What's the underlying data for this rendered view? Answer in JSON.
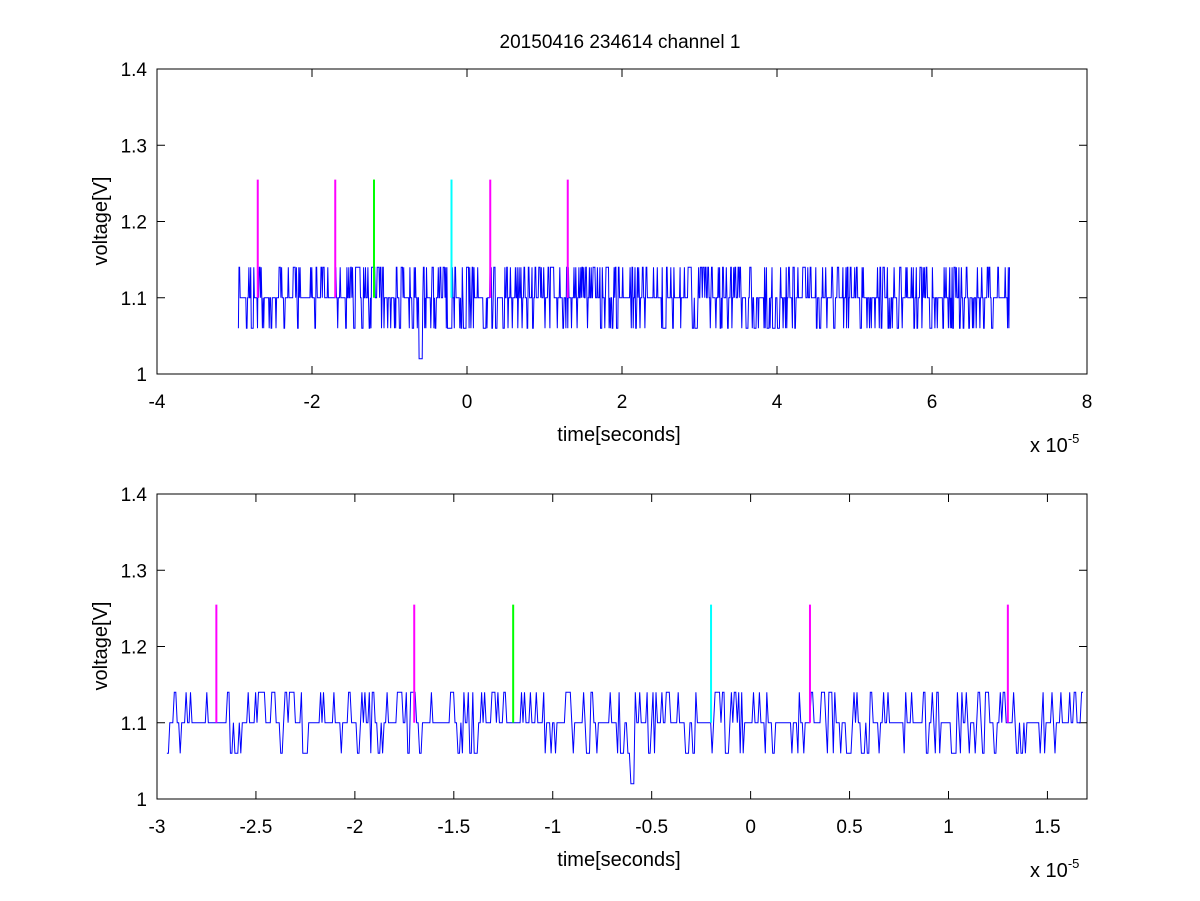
{
  "figure_title": "20150416 234614 channel 1",
  "colors": {
    "signal": "#0000ff",
    "marker_magenta": "#ff00ff",
    "marker_green": "#00ff00",
    "marker_cyan": "#00ffff",
    "axes": "#000000",
    "background": "#ffffff"
  },
  "chart_data": [
    {
      "type": "line",
      "title": "20150416 234614 channel 1",
      "xlabel": "time[seconds]",
      "ylabel": "voltage[V]",
      "x_exponent_base": "x 10",
      "x_exponent_power": "-5",
      "xlim": [
        -4,
        8
      ],
      "ylim": [
        1,
        1.4
      ],
      "xticks": [
        -4,
        -2,
        0,
        2,
        4,
        6,
        8
      ],
      "xtick_labels": [
        "-4",
        "-2",
        "0",
        "2",
        "4",
        "6",
        "8"
      ],
      "yticks": [
        1,
        1.1,
        1.2,
        1.3,
        1.4
      ],
      "ytick_labels": [
        "1",
        "1.1",
        "1.2",
        "1.3",
        "1.4"
      ],
      "grid": false,
      "signal": {
        "x_range": [
          -2.95,
          7.0
        ],
        "baseline": 1.1,
        "levels": [
          1.02,
          1.06,
          1.1,
          1.14
        ],
        "dip_at": -0.6,
        "dip_value": 1.02
      },
      "markers": [
        {
          "x": -2.7,
          "y_bottom": 1.1,
          "y_top": 1.255,
          "color": "magenta"
        },
        {
          "x": -1.7,
          "y_bottom": 1.1,
          "y_top": 1.255,
          "color": "magenta"
        },
        {
          "x": -1.2,
          "y_bottom": 1.1,
          "y_top": 1.255,
          "color": "green"
        },
        {
          "x": -0.2,
          "y_bottom": 1.1,
          "y_top": 1.255,
          "color": "cyan"
        },
        {
          "x": 0.3,
          "y_bottom": 1.1,
          "y_top": 1.255,
          "color": "magenta"
        },
        {
          "x": 1.3,
          "y_bottom": 1.1,
          "y_top": 1.255,
          "color": "magenta"
        }
      ]
    },
    {
      "type": "line",
      "title": "",
      "xlabel": "time[seconds]",
      "ylabel": "voltage[V]",
      "x_exponent_base": "x 10",
      "x_exponent_power": "-5",
      "xlim": [
        -3.0,
        1.7
      ],
      "ylim": [
        1,
        1.4
      ],
      "xticks": [
        -3,
        -2.5,
        -2,
        -1.5,
        -1,
        -0.5,
        0,
        0.5,
        1,
        1.5
      ],
      "xtick_labels": [
        "-3",
        "-2.5",
        "-2",
        "-1.5",
        "-1",
        "-0.5",
        "0",
        "0.5",
        "1",
        "1.5"
      ],
      "yticks": [
        1,
        1.1,
        1.2,
        1.3,
        1.4
      ],
      "ytick_labels": [
        "1",
        "1.1",
        "1.2",
        "1.3",
        "1.4"
      ],
      "grid": false,
      "signal": {
        "x_range": [
          -2.95,
          1.68
        ],
        "baseline": 1.1,
        "levels": [
          1.02,
          1.06,
          1.1,
          1.14
        ],
        "dip_at": -0.6,
        "dip_value": 1.02
      },
      "markers": [
        {
          "x": -2.7,
          "y_bottom": 1.1,
          "y_top": 1.255,
          "color": "magenta"
        },
        {
          "x": -1.7,
          "y_bottom": 1.1,
          "y_top": 1.255,
          "color": "magenta"
        },
        {
          "x": -1.2,
          "y_bottom": 1.1,
          "y_top": 1.255,
          "color": "green"
        },
        {
          "x": -0.2,
          "y_bottom": 1.1,
          "y_top": 1.255,
          "color": "cyan"
        },
        {
          "x": 0.3,
          "y_bottom": 1.1,
          "y_top": 1.255,
          "color": "magenta"
        },
        {
          "x": 1.3,
          "y_bottom": 1.1,
          "y_top": 1.255,
          "color": "magenta"
        }
      ]
    }
  ]
}
